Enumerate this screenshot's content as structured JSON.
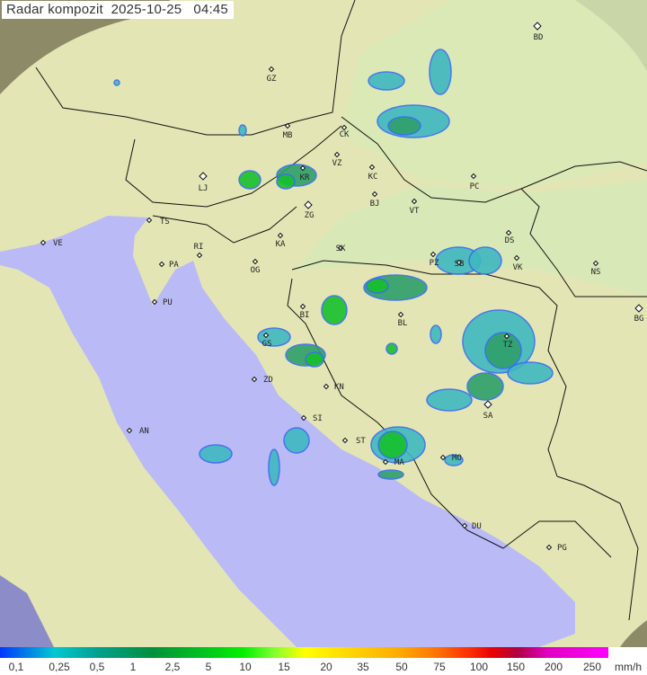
{
  "title": "Radar kompozit  2025-10-25   04:45",
  "colors": {
    "sea": "#babaf6",
    "land": "#e6e8b6",
    "outside": "#8d8a68",
    "rain_light": "#3fb8c0",
    "rain_mid": "#2fa06a",
    "rain_heavy": "#16c02c",
    "rain_edge": "#3a6cf0"
  },
  "cities": [
    "BD",
    "GZ",
    "MB",
    "CK",
    "VZ",
    "KR",
    "LJ",
    "KC",
    "PC",
    "ZG",
    "BJ",
    "VT",
    "TS",
    "VE",
    "RI",
    "KA",
    "SK",
    "PA",
    "OG",
    "DS",
    "NS",
    "PZ",
    "SB",
    "VK",
    "PU",
    "BI",
    "BL",
    "BG",
    "GS",
    "TZ",
    "ZD",
    "KN",
    "SI",
    "SA",
    "AN",
    "ST",
    "MA",
    "MO",
    "DU",
    "PG"
  ],
  "legend": {
    "labels": [
      "0,1",
      "0,25",
      "0,5",
      "1",
      "2,5",
      "5",
      "10",
      "15",
      "20",
      "35",
      "50",
      "75",
      "100",
      "150",
      "200",
      "250"
    ],
    "unit": "mm/h"
  }
}
